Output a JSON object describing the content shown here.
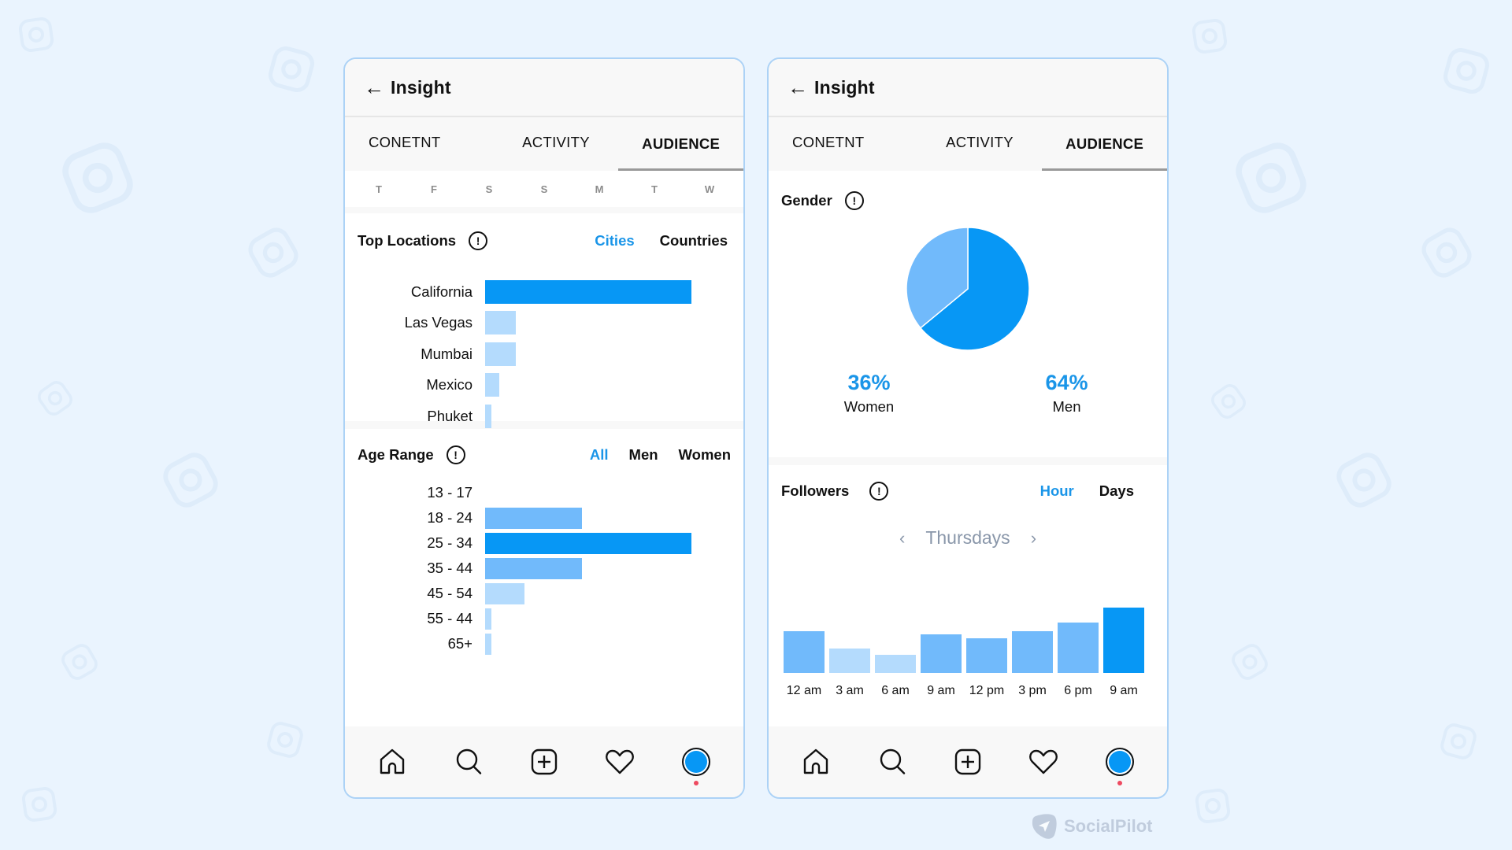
{
  "colors": {
    "accent": "#1a95e8",
    "bar_primary": "#0797f5",
    "bar_medium": "#71bafb",
    "bar_light": "#b4dbfd",
    "card_border": "#acd2f6",
    "background": "#eaf4fe",
    "muted_text": "#8a97aa"
  },
  "left_panel": {
    "header": {
      "back_icon": "arrow-left-icon",
      "title": "Insight"
    },
    "tabs": [
      {
        "label": "CONETNT",
        "active": false
      },
      {
        "label": "ACTIVITY",
        "active": false
      },
      {
        "label": "AUDIENCE",
        "active": true
      }
    ],
    "days": [
      "T",
      "F",
      "S",
      "S",
      "M",
      "T",
      "W"
    ],
    "top_locations": {
      "title": "Top Locations",
      "info_icon": "info-icon",
      "filters": [
        {
          "label": "Cities",
          "active": true
        },
        {
          "label": "Countries",
          "active": false
        }
      ]
    },
    "age_range": {
      "title": "Age Range",
      "info_icon": "info-icon",
      "filters": [
        {
          "label": "All",
          "active": true
        },
        {
          "label": "Men",
          "active": false
        },
        {
          "label": "Women",
          "active": false
        }
      ]
    }
  },
  "right_panel": {
    "header": {
      "back_icon": "arrow-left-icon",
      "title": "Insight"
    },
    "tabs": [
      {
        "label": "CONETNT",
        "active": false
      },
      {
        "label": "ACTIVITY",
        "active": false
      },
      {
        "label": "AUDIENCE",
        "active": true
      }
    ],
    "gender": {
      "title": "Gender",
      "info_icon": "info-icon",
      "women_pct": "36%",
      "women_label": "Women",
      "men_pct": "64%",
      "men_label": "Men"
    },
    "followers": {
      "title": "Followers",
      "info_icon": "info-icon",
      "filters": [
        {
          "label": "Hour",
          "active": true
        },
        {
          "label": "Days",
          "active": false
        }
      ],
      "day_selector": {
        "prev_icon": "chevron-left-icon",
        "label": "Thursdays",
        "next_icon": "chevron-right-icon"
      }
    }
  },
  "bottom_nav": {
    "items": [
      {
        "icon": "home-icon"
      },
      {
        "icon": "search-icon"
      },
      {
        "icon": "add-post-icon"
      },
      {
        "icon": "heart-icon"
      },
      {
        "icon": "profile-avatar",
        "notification_dot": true
      }
    ]
  },
  "brand": {
    "name": "SocialPilot",
    "icon": "paper-plane-icon"
  },
  "chart_data": [
    {
      "type": "bar",
      "orientation": "horizontal",
      "title": "Top Locations",
      "categories": [
        "California",
        "Las Vegas",
        "Mumbai",
        "Mexico",
        "Phuket"
      ],
      "values": [
        100,
        15,
        15,
        7,
        3
      ],
      "colors": [
        "#0797f5",
        "#b4dbfd",
        "#b4dbfd",
        "#b4dbfd",
        "#b4dbfd"
      ],
      "xlabel": "",
      "ylabel": "",
      "grid": false
    },
    {
      "type": "bar",
      "orientation": "horizontal",
      "title": "Age Range",
      "categories": [
        "13 - 17",
        "18 - 24",
        "25 - 34",
        "35 - 44",
        "45 - 54",
        "55 - 44",
        "65+"
      ],
      "values": [
        0,
        47,
        100,
        47,
        19,
        3,
        3
      ],
      "colors": [
        "#71bafb",
        "#71bafb",
        "#0797f5",
        "#71bafb",
        "#b4dbfd",
        "#b4dbfd",
        "#b4dbfd"
      ],
      "xlabel": "",
      "ylabel": "",
      "grid": false
    },
    {
      "type": "pie",
      "title": "Gender",
      "categories": [
        "Women",
        "Men"
      ],
      "values": [
        36,
        64
      ],
      "colors": [
        "#71bafb",
        "#0797f5"
      ]
    },
    {
      "type": "bar",
      "orientation": "vertical",
      "title": "Followers (Thursdays, by hour)",
      "categories": [
        "12 am",
        "3 am",
        "6 am",
        "9 am",
        "12 pm",
        "3 pm",
        "6 pm",
        "9 am"
      ],
      "values": [
        53,
        31,
        23,
        49,
        44,
        53,
        64,
        83
      ],
      "colors": [
        "#71bafb",
        "#b4dbfd",
        "#b4dbfd",
        "#71bafb",
        "#71bafb",
        "#71bafb",
        "#71bafb",
        "#0797f5"
      ],
      "xlabel": "",
      "ylabel": "",
      "grid": false
    }
  ]
}
